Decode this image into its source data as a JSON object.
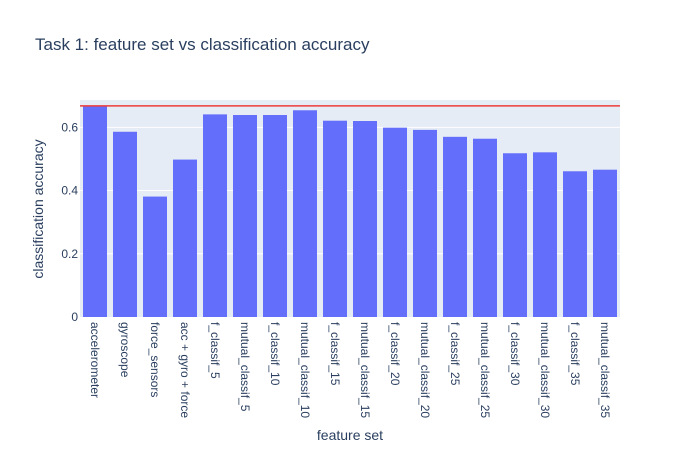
{
  "chart_data": {
    "type": "bar",
    "title": "Task 1: feature set vs classification accuracy",
    "xlabel": "feature set",
    "ylabel": "classification accuracy",
    "categories": [
      "accelerometer",
      "gyroscope",
      "force_sensors",
      "acc + gyro + force",
      "f_classif_5",
      "mutual_classif_5",
      "f_classif_10",
      "mutual_classif_10",
      "f_classif_15",
      "mutual_classif_15",
      "f_classif_20",
      "mutual_classif_20",
      "f_classif_25",
      "mutual_classif_25",
      "f_classif_30",
      "mutual_classif_30",
      "f_classif_35",
      "mutual_classif_35"
    ],
    "values": [
      0.668,
      0.586,
      0.381,
      0.498,
      0.641,
      0.639,
      0.639,
      0.654,
      0.621,
      0.62,
      0.599,
      0.592,
      0.57,
      0.564,
      0.518,
      0.521,
      0.461,
      0.466
    ],
    "ylim": [
      0,
      0.6865
    ],
    "yticks": [
      0,
      0.2,
      0.4,
      0.6
    ],
    "ytick_labels": [
      "0",
      "0.2",
      "0.4",
      "0.6"
    ],
    "reference_line": {
      "y": 0.668,
      "color": "#ef3b3b"
    },
    "grid": true,
    "colors": {
      "bar": "#636efa",
      "plot_bg": "#e5ecf6",
      "grid": "#ffffff",
      "text": "#2a3f5f"
    }
  }
}
